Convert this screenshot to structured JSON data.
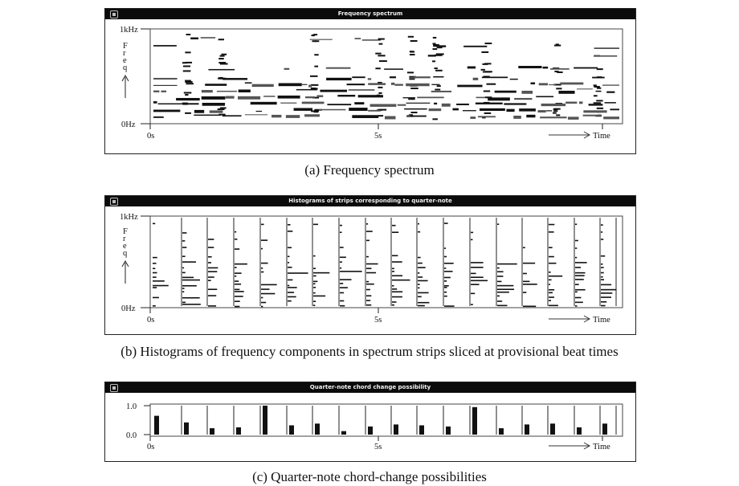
{
  "panels": {
    "a": {
      "window_title": "Frequency spectrum",
      "caption": "(a) Frequency spectrum",
      "y_top_label": "1kHz",
      "y_bottom_label": "0Hz",
      "y_axis_letters": [
        "F",
        "r",
        "e",
        "q"
      ],
      "x_tick_labels": [
        "0s",
        "5s"
      ],
      "x_axis_label": "Time"
    },
    "b": {
      "window_title": "Histograms of strips corresponding to quarter-note",
      "caption": "(b) Histograms of frequency components in spectrum strips sliced at provisional beat times",
      "y_top_label": "1kHz",
      "y_bottom_label": "0Hz",
      "y_axis_letters": [
        "F",
        "r",
        "e",
        "q"
      ],
      "x_tick_labels": [
        "0s",
        "5s"
      ],
      "x_axis_label": "Time"
    },
    "c": {
      "window_title": "Quarter-note chord change possibility",
      "caption": "(c) Quarter-note chord-change possibilities",
      "y_top_label": "1.0",
      "y_bottom_label": "0.0",
      "x_tick_labels": [
        "0s",
        "5s"
      ],
      "x_axis_label": "Time"
    }
  },
  "chart_data": [
    {
      "type": "heatmap",
      "title": "Frequency spectrum",
      "xlabel": "Time",
      "ylabel": "Freq",
      "xlim": [
        0,
        9.6
      ],
      "ylim_labels": [
        "0Hz",
        "1kHz"
      ],
      "x_tick_labels": [
        "0s",
        "5s"
      ],
      "note": "spectrogram intensity; dark horizontal partial lines and vertical onset bands"
    },
    {
      "type": "bar",
      "title": "Histograms of strips corresponding to quarter-note",
      "xlabel": "Time",
      "ylabel": "Freq",
      "strip_count": 18,
      "x_tick_labels": [
        "0s",
        "5s"
      ],
      "ylim_labels": [
        "0Hz",
        "1kHz"
      ]
    },
    {
      "type": "bar",
      "title": "Quarter-note chord change possibility",
      "xlabel": "Time",
      "ylim": [
        0,
        1.0
      ],
      "x_tick_labels": [
        "0s",
        "5s"
      ],
      "categories": [
        "1",
        "2",
        "3",
        "4",
        "5",
        "6",
        "7",
        "8",
        "9",
        "10",
        "11",
        "12",
        "13",
        "14",
        "15",
        "16",
        "17",
        "18"
      ],
      "values": [
        0.65,
        0.42,
        0.22,
        0.25,
        1.0,
        0.32,
        0.38,
        0.12,
        0.28,
        0.35,
        0.32,
        0.28,
        0.95,
        0.22,
        0.35,
        0.38,
        0.25,
        0.38
      ]
    }
  ]
}
